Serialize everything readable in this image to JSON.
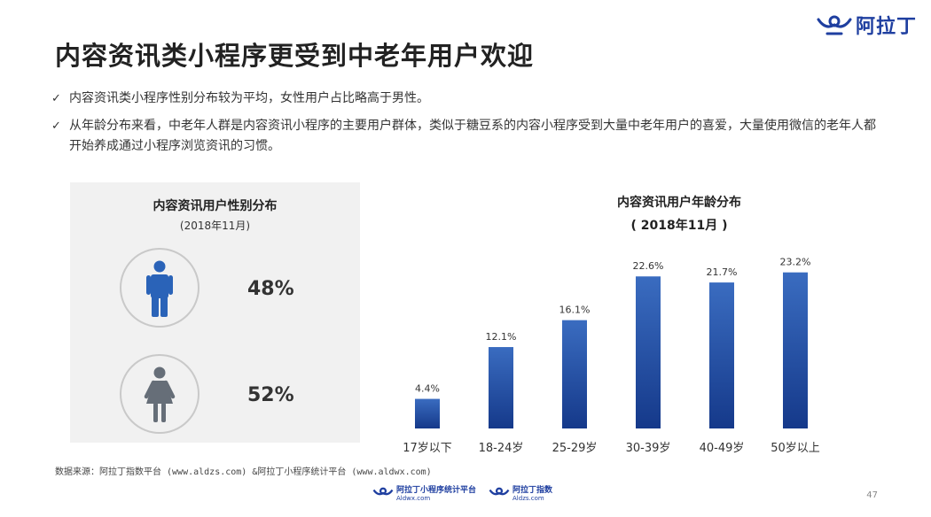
{
  "header": {
    "brand_name": "阿拉丁",
    "title": "内容资讯类小程序更受到中老年用户欢迎"
  },
  "bullets": [
    "内容资讯类小程序性别分布较为平均，女性用户占比略高于男性。",
    "从年龄分布来看，中老年人群是内容资讯小程序的主要用户群体，类似于糖豆系的内容小程序受到大量中老年用户的喜爱，大量使用微信的老年人都开始养成通过小程序浏览资讯的习惯。"
  ],
  "gender_panel": {
    "title": "内容资讯用户性别分布",
    "subtitle": "(2018年11月)",
    "male_pct": "48%",
    "female_pct": "52%",
    "male_color": "#2a63b8",
    "female_color": "#666e78"
  },
  "chart_data": {
    "type": "bar",
    "title": "内容资讯用户年龄分布",
    "subtitle": "( 2018年11月 )",
    "categories": [
      "17岁以下",
      "18-24岁",
      "25-29岁",
      "30-39岁",
      "40-49岁",
      "50岁以上"
    ],
    "values": [
      4.4,
      12.1,
      16.1,
      22.6,
      21.7,
      23.2
    ],
    "value_labels": [
      "4.4%",
      "12.1%",
      "16.1%",
      "22.6%",
      "21.7%",
      "23.2%"
    ],
    "unit": "%",
    "ylim": [
      0,
      25
    ],
    "grid": false,
    "bar_color_top": "#3a6cc0",
    "bar_color_bottom": "#15398a"
  },
  "source": "数据来源：阿拉丁指数平台 (www.aldzs.com) &阿拉丁小程序统计平台 (www.aldwx.com)",
  "footer": {
    "logo1_name": "阿拉丁小程序统计平台",
    "logo1_url": "Aldwx.com",
    "logo2_name": "阿拉丁指数",
    "logo2_url": "Aldzs.com"
  },
  "page_number": "47"
}
